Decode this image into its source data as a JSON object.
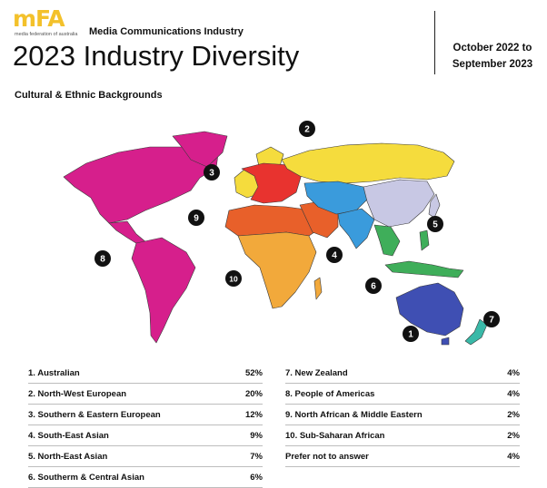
{
  "header": {
    "logo_text": "mFA",
    "logo_subtext": "media federation of australia",
    "eyebrow": "Media Communications Industry",
    "title": "2023 Industry Diversity",
    "date_line1": "October 2022  to",
    "date_line2": "September 2023"
  },
  "section_title": "Cultural & Ethnic Backgrounds",
  "colors": {
    "australian": "#3f4fb3",
    "north_west_european": "#f5dc3d",
    "southern_eastern_european": "#e8332f",
    "south_east_asian": "#3fae5a",
    "north_east_asian": "#c8c8e4",
    "southern_central_asian": "#3a9bdc",
    "new_zealand": "#39b9a8",
    "americas": "#d61f8c",
    "north_african_middle_eastern": "#e8602a",
    "sub_saharan_african": "#f2a93b",
    "logo": "#f3c12b"
  },
  "chart_data": {
    "type": "table",
    "title": "Cultural & Ethnic Backgrounds",
    "rows": [
      {
        "label": "1. Australian",
        "value": "52%"
      },
      {
        "label": "2. North-West European",
        "value": "20%"
      },
      {
        "label": "3. Southern & Eastern European",
        "value": "12%"
      },
      {
        "label": "4. South-East Asian",
        "value": "9%"
      },
      {
        "label": "5. North-East Asian",
        "value": "7%"
      },
      {
        "label": "6. Southerm & Central Asian",
        "value": "6%"
      },
      {
        "label": "7. New Zealand",
        "value": "4%"
      },
      {
        "label": "8. People of Americas",
        "value": "4%"
      },
      {
        "label": "9. North African & Middle Eastern",
        "value": "2%"
      },
      {
        "label": "10. Sub-Saharan African",
        "value": "2%"
      },
      {
        "label": "Prefer not to answer",
        "value": "4%"
      }
    ],
    "map_markers": [
      "1",
      "2",
      "3",
      "4",
      "5",
      "6",
      "7",
      "8",
      "9",
      "10"
    ]
  }
}
